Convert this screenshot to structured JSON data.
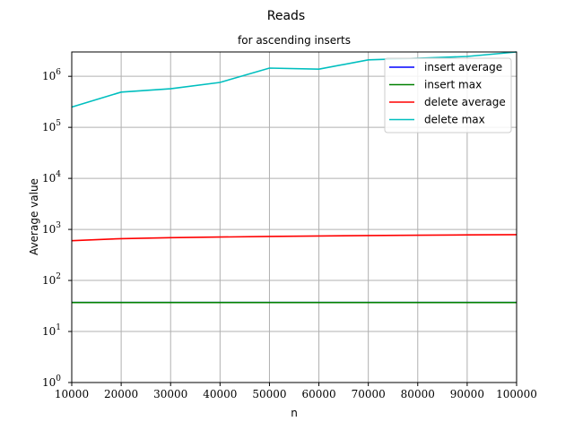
{
  "chart_data": {
    "type": "line",
    "title": "Reads",
    "subtitle": "for ascending inserts",
    "xlabel": "n",
    "ylabel": "Average value",
    "xlim": [
      10000,
      100000
    ],
    "ylim": [
      1,
      3000000
    ],
    "yscale": "log",
    "grid": true,
    "legend_position": "top-right",
    "x_ticks": [
      "10000",
      "20000",
      "30000",
      "40000",
      "50000",
      "60000",
      "70000",
      "80000",
      "90000",
      "100000"
    ],
    "y_ticks": [
      {
        "base": "10",
        "exp": "0",
        "value": 1
      },
      {
        "base": "10",
        "exp": "1",
        "value": 10
      },
      {
        "base": "10",
        "exp": "2",
        "value": 100
      },
      {
        "base": "10",
        "exp": "3",
        "value": 1000
      },
      {
        "base": "10",
        "exp": "4",
        "value": 10000
      },
      {
        "base": "10",
        "exp": "5",
        "value": 100000
      },
      {
        "base": "10",
        "exp": "6",
        "value": 1000000
      }
    ],
    "x": [
      10000,
      20000,
      30000,
      40000,
      50000,
      60000,
      70000,
      80000,
      90000,
      100000
    ],
    "series": [
      {
        "name": "insert average",
        "color": "#0000ff",
        "values": [
          37,
          37,
          37,
          37,
          37,
          37,
          37,
          37,
          37,
          37
        ]
      },
      {
        "name": "insert max",
        "color": "#008000",
        "values": [
          37,
          37,
          37,
          37,
          37,
          37,
          37,
          37,
          37,
          37
        ]
      },
      {
        "name": "delete average",
        "color": "#ff0000",
        "values": [
          600,
          660,
          690,
          710,
          730,
          745,
          760,
          770,
          780,
          790
        ]
      },
      {
        "name": "delete max",
        "color": "#00bfbf",
        "values": [
          250000,
          490000,
          570000,
          760000,
          1450000,
          1380000,
          2100000,
          2250000,
          2450000,
          3000000
        ]
      }
    ]
  }
}
